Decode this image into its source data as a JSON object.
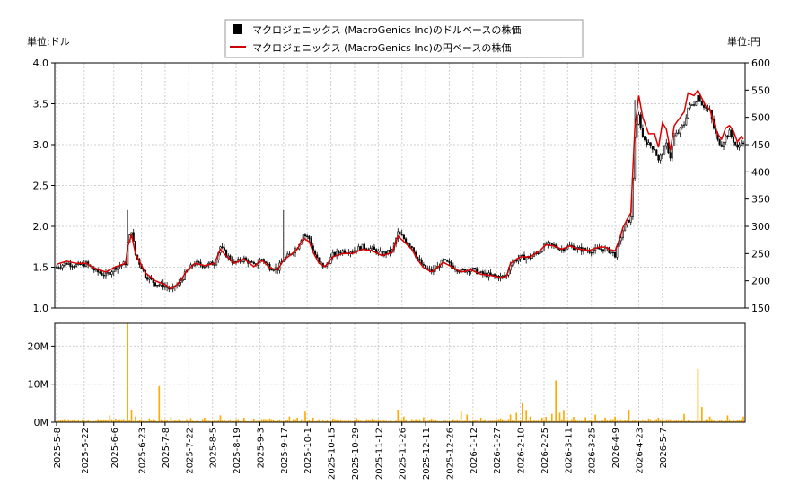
{
  "chart_data": [
    {
      "type": "candlestick-line",
      "legend": [
        {
          "name": "マクロジェニックス (MacroGenics Inc)のドルベースの株価",
          "color": "#000000",
          "marker": "square"
        },
        {
          "name": "マクロジェニックス (MacroGenics Inc)の円ベースの株価",
          "color": "#cc0000",
          "marker": "line"
        }
      ],
      "legend_placement": "top-center",
      "y_left_label": "単位:ドル",
      "y_right_label": "単位:円",
      "y_left_ticks": [
        "1.0",
        "1.5",
        "2.0",
        "2.5",
        "3.0",
        "3.5",
        "4.0"
      ],
      "y_right_ticks": [
        "150",
        "200",
        "250",
        "300",
        "350",
        "400",
        "450",
        "500",
        "550",
        "600"
      ],
      "y_left_range": [
        1.0,
        4.0
      ],
      "y_right_range": [
        150,
        600
      ],
      "grid": true,
      "usd_close": [
        [
          0,
          1.5
        ],
        [
          5,
          1.55
        ],
        [
          10,
          1.52
        ],
        [
          15,
          1.54
        ],
        [
          20,
          1.45
        ],
        [
          25,
          1.4
        ],
        [
          30,
          1.5
        ],
        [
          35,
          1.55
        ],
        [
          36,
          1.8
        ],
        [
          38,
          1.95
        ],
        [
          40,
          1.65
        ],
        [
          45,
          1.4
        ],
        [
          50,
          1.3
        ],
        [
          55,
          1.27
        ],
        [
          58,
          1.22
        ],
        [
          62,
          1.3
        ],
        [
          66,
          1.45
        ],
        [
          70,
          1.55
        ],
        [
          75,
          1.52
        ],
        [
          80,
          1.55
        ],
        [
          83,
          1.75
        ],
        [
          86,
          1.65
        ],
        [
          90,
          1.55
        ],
        [
          95,
          1.6
        ],
        [
          100,
          1.52
        ],
        [
          104,
          1.6
        ],
        [
          108,
          1.5
        ],
        [
          112,
          1.48
        ],
        [
          115,
          1.6
        ],
        [
          118,
          1.65
        ],
        [
          122,
          1.75
        ],
        [
          125,
          1.9
        ],
        [
          128,
          1.85
        ],
        [
          130,
          1.7
        ],
        [
          133,
          1.55
        ],
        [
          136,
          1.5
        ],
        [
          140,
          1.65
        ],
        [
          145,
          1.7
        ],
        [
          150,
          1.7
        ],
        [
          155,
          1.75
        ],
        [
          160,
          1.72
        ],
        [
          165,
          1.66
        ],
        [
          170,
          1.7
        ],
        [
          173,
          1.92
        ],
        [
          176,
          1.85
        ],
        [
          180,
          1.75
        ],
        [
          183,
          1.6
        ],
        [
          186,
          1.5
        ],
        [
          190,
          1.45
        ],
        [
          193,
          1.5
        ],
        [
          196,
          1.58
        ],
        [
          200,
          1.52
        ],
        [
          205,
          1.45
        ],
        [
          210,
          1.48
        ],
        [
          215,
          1.42
        ],
        [
          220,
          1.4
        ],
        [
          225,
          1.38
        ],
        [
          228,
          1.4
        ],
        [
          230,
          1.55
        ],
        [
          235,
          1.62
        ],
        [
          240,
          1.62
        ],
        [
          245,
          1.7
        ],
        [
          248,
          1.78
        ],
        [
          252,
          1.76
        ],
        [
          256,
          1.72
        ],
        [
          260,
          1.76
        ],
        [
          265,
          1.72
        ],
        [
          270,
          1.7
        ],
        [
          275,
          1.72
        ],
        [
          278,
          1.72
        ],
        [
          280,
          1.7
        ],
        [
          283,
          1.65
        ],
        [
          285,
          1.8
        ],
        [
          287,
          1.95
        ],
        [
          289,
          2.05
        ],
        [
          291,
          2.1
        ],
        [
          293,
          3.1
        ],
        [
          295,
          3.35
        ],
        [
          297,
          3.1
        ],
        [
          300,
          3.0
        ],
        [
          303,
          2.95
        ],
        [
          305,
          2.8
        ],
        [
          307,
          2.9
        ],
        [
          309,
          3.0
        ],
        [
          311,
          2.85
        ],
        [
          313,
          3.1
        ],
        [
          315,
          3.15
        ],
        [
          318,
          3.25
        ],
        [
          320,
          3.45
        ],
        [
          323,
          3.5
        ],
        [
          325,
          3.6
        ],
        [
          327,
          3.5
        ],
        [
          329,
          3.45
        ],
        [
          331,
          3.4
        ],
        [
          333,
          3.2
        ],
        [
          335,
          3.05
        ],
        [
          337,
          3.0
        ],
        [
          339,
          3.1
        ],
        [
          341,
          3.15
        ],
        [
          343,
          3.05
        ],
        [
          345,
          2.95
        ],
        [
          347,
          3.05
        ],
        [
          348,
          3.0
        ]
      ],
      "jpy_close": [
        [
          0,
          230
        ],
        [
          5,
          236
        ],
        [
          10,
          232
        ],
        [
          15,
          232
        ],
        [
          20,
          222
        ],
        [
          25,
          216
        ],
        [
          30,
          226
        ],
        [
          35,
          232
        ],
        [
          36,
          262
        ],
        [
          38,
          284
        ],
        [
          40,
          250
        ],
        [
          45,
          215
        ],
        [
          50,
          200
        ],
        [
          55,
          193
        ],
        [
          58,
          185
        ],
        [
          62,
          196
        ],
        [
          66,
          218
        ],
        [
          70,
          232
        ],
        [
          75,
          228
        ],
        [
          80,
          232
        ],
        [
          83,
          258
        ],
        [
          86,
          245
        ],
        [
          90,
          232
        ],
        [
          95,
          240
        ],
        [
          100,
          226
        ],
        [
          104,
          238
        ],
        [
          108,
          224
        ],
        [
          112,
          220
        ],
        [
          115,
          238
        ],
        [
          118,
          246
        ],
        [
          122,
          258
        ],
        [
          125,
          278
        ],
        [
          128,
          272
        ],
        [
          130,
          252
        ],
        [
          133,
          232
        ],
        [
          136,
          226
        ],
        [
          140,
          244
        ],
        [
          145,
          250
        ],
        [
          150,
          250
        ],
        [
          155,
          258
        ],
        [
          160,
          255
        ],
        [
          165,
          246
        ],
        [
          170,
          252
        ],
        [
          173,
          282
        ],
        [
          176,
          272
        ],
        [
          180,
          258
        ],
        [
          183,
          238
        ],
        [
          186,
          224
        ],
        [
          190,
          216
        ],
        [
          193,
          224
        ],
        [
          196,
          234
        ],
        [
          200,
          226
        ],
        [
          205,
          216
        ],
        [
          210,
          220
        ],
        [
          215,
          212
        ],
        [
          220,
          210
        ],
        [
          225,
          206
        ],
        [
          228,
          208
        ],
        [
          230,
          232
        ],
        [
          235,
          244
        ],
        [
          240,
          244
        ],
        [
          245,
          256
        ],
        [
          248,
          266
        ],
        [
          252,
          264
        ],
        [
          256,
          258
        ],
        [
          260,
          264
        ],
        [
          265,
          258
        ],
        [
          270,
          256
        ],
        [
          275,
          262
        ],
        [
          278,
          262
        ],
        [
          280,
          258
        ],
        [
          283,
          255
        ],
        [
          285,
          274
        ],
        [
          287,
          298
        ],
        [
          289,
          312
        ],
        [
          291,
          325
        ],
        [
          293,
          480
        ],
        [
          295,
          540
        ],
        [
          297,
          500
        ],
        [
          300,
          470
        ],
        [
          303,
          470
        ],
        [
          305,
          445
        ],
        [
          307,
          490
        ],
        [
          309,
          478
        ],
        [
          311,
          440
        ],
        [
          313,
          485
        ],
        [
          315,
          495
        ],
        [
          318,
          510
        ],
        [
          320,
          545
        ],
        [
          323,
          540
        ],
        [
          325,
          550
        ],
        [
          327,
          535
        ],
        [
          329,
          520
        ],
        [
          331,
          515
        ],
        [
          333,
          490
        ],
        [
          335,
          470
        ],
        [
          337,
          460
        ],
        [
          339,
          480
        ],
        [
          341,
          485
        ],
        [
          343,
          475
        ],
        [
          345,
          455
        ],
        [
          347,
          465
        ],
        [
          348,
          460
        ]
      ],
      "spikes": [
        {
          "i": 36,
          "high": 2.2
        },
        {
          "i": 115,
          "high": 2.2
        },
        {
          "i": 325,
          "high": 3.85
        },
        {
          "i": 293,
          "high": 3.55
        }
      ]
    },
    {
      "type": "bar",
      "y_ticks": [
        "0M",
        "10M",
        "20M"
      ],
      "y_range": [
        0,
        26
      ],
      "bar_color": "#ffaa00",
      "volume_base": 0.4,
      "volume_spikes": [
        [
          27,
          1.8
        ],
        [
          30,
          0.9
        ],
        [
          36,
          26.0
        ],
        [
          38,
          3.2
        ],
        [
          40,
          1.5
        ],
        [
          47,
          1.0
        ],
        [
          52,
          9.5
        ],
        [
          58,
          1.3
        ],
        [
          68,
          1.1
        ],
        [
          75,
          1.2
        ],
        [
          83,
          1.8
        ],
        [
          95,
          1.2
        ],
        [
          100,
          0.8
        ],
        [
          108,
          1.0
        ],
        [
          118,
          1.5
        ],
        [
          122,
          1.2
        ],
        [
          126,
          2.8
        ],
        [
          130,
          1.2
        ],
        [
          140,
          1.0
        ],
        [
          152,
          1.1
        ],
        [
          160,
          0.9
        ],
        [
          173,
          3.2
        ],
        [
          176,
          1.5
        ],
        [
          186,
          1.3
        ],
        [
          190,
          0.9
        ],
        [
          205,
          2.8
        ],
        [
          208,
          2.0
        ],
        [
          215,
          1.2
        ],
        [
          225,
          1.0
        ],
        [
          230,
          2.0
        ],
        [
          233,
          2.5
        ],
        [
          236,
          5.0
        ],
        [
          238,
          3.0
        ],
        [
          240,
          1.5
        ],
        [
          246,
          1.2
        ],
        [
          248,
          1.4
        ],
        [
          251,
          2.2
        ],
        [
          253,
          11.0
        ],
        [
          255,
          2.5
        ],
        [
          257,
          3.0
        ],
        [
          262,
          1.4
        ],
        [
          268,
          1.3
        ],
        [
          273,
          2.0
        ],
        [
          278,
          1.2
        ],
        [
          283,
          1.5
        ],
        [
          290,
          3.2
        ],
        [
          300,
          1.0
        ],
        [
          305,
          1.2
        ],
        [
          318,
          2.2
        ],
        [
          325,
          14.0
        ],
        [
          327,
          4.0
        ],
        [
          331,
          1.5
        ],
        [
          340,
          1.8
        ],
        [
          348,
          1.5
        ]
      ]
    }
  ],
  "x_ticks": [
    {
      "i": 0,
      "label": "2025-5-8"
    },
    {
      "i": 14,
      "label": "2025-5-22"
    },
    {
      "i": 29,
      "label": "2025-6-6"
    },
    {
      "i": 43,
      "label": "2025-6-23"
    },
    {
      "i": 55,
      "label": "2025-7-8"
    },
    {
      "i": 67,
      "label": "2025-7-22"
    },
    {
      "i": 79,
      "label": "2025-8-5"
    },
    {
      "i": 91,
      "label": "2025-8-19"
    },
    {
      "i": 103,
      "label": "2025-9-3"
    },
    {
      "i": 115,
      "label": "2025-9-17"
    },
    {
      "i": 127,
      "label": "2025-10-1"
    },
    {
      "i": 139,
      "label": "2025-10-15"
    },
    {
      "i": 151,
      "label": "2025-10-29"
    },
    {
      "i": 163,
      "label": "2025-11-12"
    },
    {
      "i": 175,
      "label": "2025-11-26"
    },
    {
      "i": 187,
      "label": "2025-12-11"
    },
    {
      "i": 199,
      "label": "2025-12-26"
    },
    {
      "i": 211,
      "label": "2026-1-12"
    },
    {
      "i": 223,
      "label": "2026-1-27"
    },
    {
      "i": 235,
      "label": "2026-2-10"
    },
    {
      "i": 247,
      "label": "2026-2-25"
    },
    {
      "i": 259,
      "label": "2026-3-11"
    },
    {
      "i": 271,
      "label": "2026-3-25"
    },
    {
      "i": 283,
      "label": "2026-4-9"
    },
    {
      "i": 295,
      "label": "2026-4-23"
    },
    {
      "i": 307,
      "label": "2026-5-7"
    }
  ],
  "n_points": 349
}
